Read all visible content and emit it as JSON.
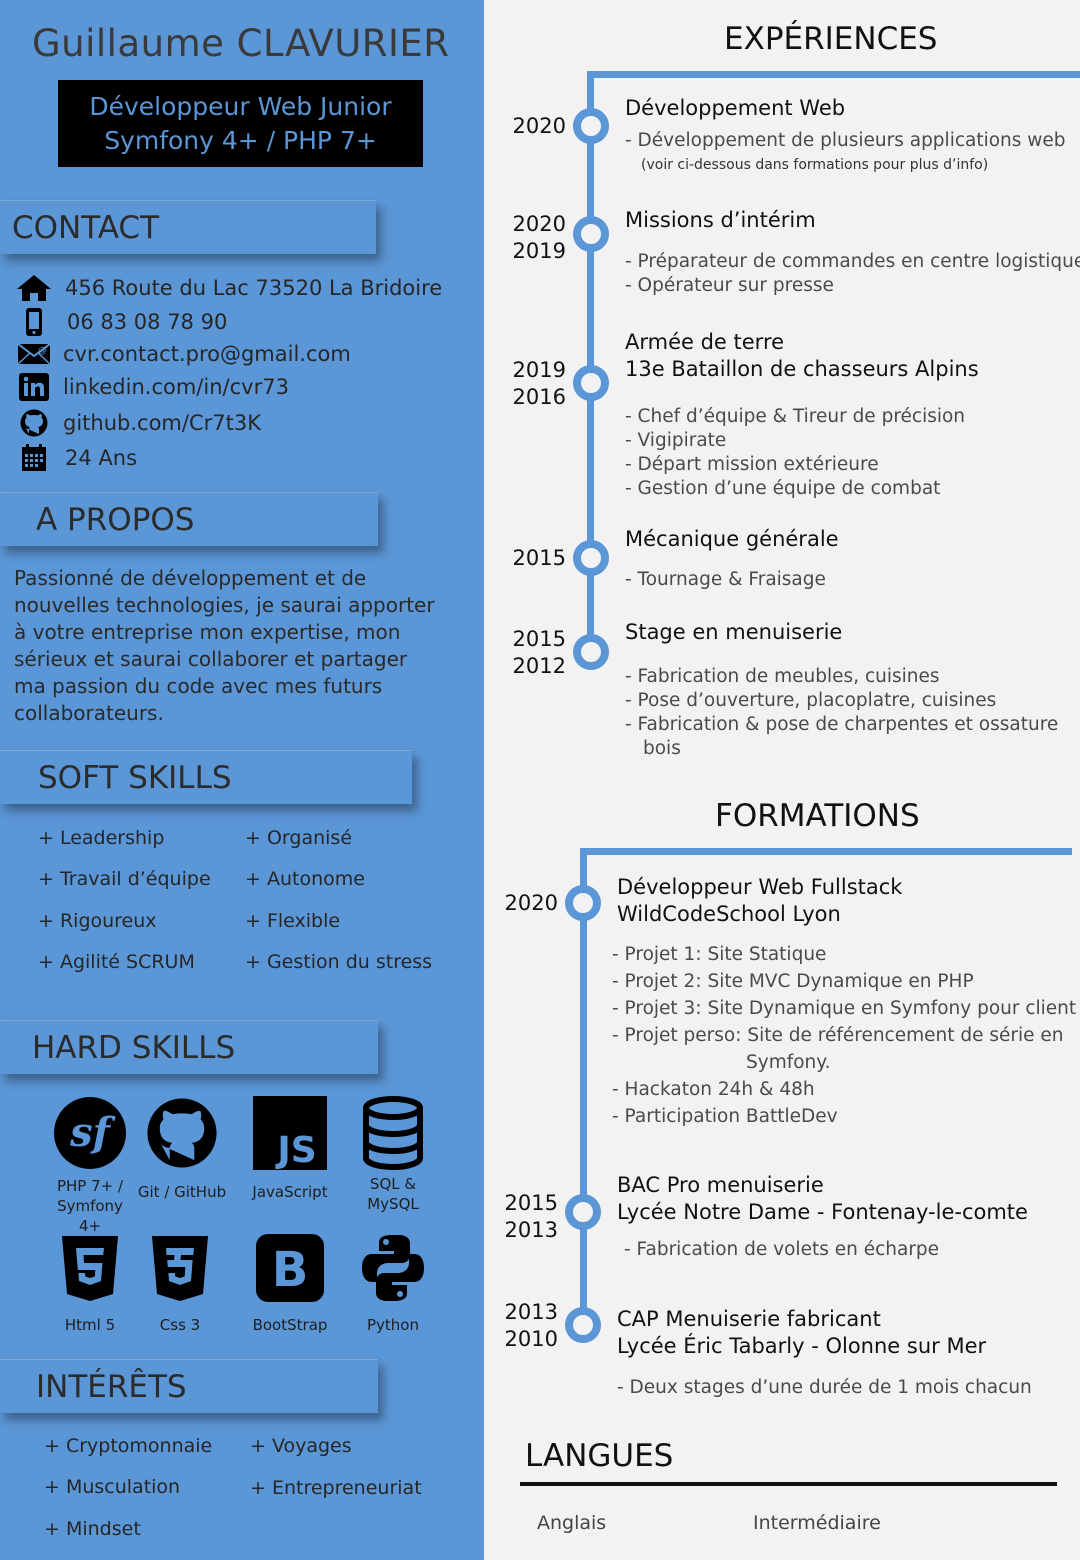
{
  "header": {
    "name": "Guillaume CLAVURIER",
    "title_line1": "Développeur Web Junior",
    "title_line2": "Symfony 4+ / PHP 7+"
  },
  "contact": {
    "heading": "CONTACT",
    "items": [
      {
        "icon": "home-icon",
        "text": "456 Route du Lac 73520 La Bridoire"
      },
      {
        "icon": "phone-icon",
        "text": "06 83 08 78 90"
      },
      {
        "icon": "mail-icon",
        "text": "cvr.contact.pro@gmail.com"
      },
      {
        "icon": "linkedin-icon",
        "text": "linkedin.com/in/cvr73"
      },
      {
        "icon": "github-icon",
        "text": "github.com/Cr7t3K"
      },
      {
        "icon": "calendar-icon",
        "text": "24 Ans"
      }
    ]
  },
  "about": {
    "heading": "A PROPOS",
    "text": "Passionné de développement et de nouvelles technologies, je saurai apporter à votre entreprise mon expertise, mon sérieux et saurai collaborer et partager ma passion du code avec mes futurs collaborateurs."
  },
  "soft_skills": {
    "heading": "SOFT SKILLS",
    "items": [
      "+ Leadership",
      "+ Organisé",
      "+ Travail d’équipe",
      "+ Autonome",
      "+ Rigoureux",
      "+ Flexible",
      "+ Agilité SCRUM",
      "+ Gestion du stress"
    ]
  },
  "hard_skills": {
    "heading": "HARD SKILLS",
    "items": [
      {
        "icon": "symfony-icon",
        "label": "PHP 7+ / Symfony 4+"
      },
      {
        "icon": "github-icon",
        "label": "Git / GitHub"
      },
      {
        "icon": "javascript-icon",
        "label": "JavaScript"
      },
      {
        "icon": "database-icon",
        "label": "SQL & MySQL"
      },
      {
        "icon": "html5-icon",
        "label": "Html 5"
      },
      {
        "icon": "css3-icon",
        "label": "Css 3"
      },
      {
        "icon": "bootstrap-icon",
        "label": "BootStrap"
      },
      {
        "icon": "python-icon",
        "label": "Python"
      }
    ]
  },
  "interests": {
    "heading": "INTÉRÊTS",
    "items": [
      "+ Cryptomonnaie",
      "+ Voyages",
      "+ Musculation",
      "+ Entrepreneuriat",
      "+ Mindset"
    ]
  },
  "experiences": {
    "heading": "EXPÉRIENCES",
    "items": [
      {
        "years": [
          "2020"
        ],
        "title": [
          "Développement Web"
        ],
        "details": [
          "- Développement de plusieurs applications web"
        ],
        "note": "(voir ci-dessous dans formations pour plus d’info)"
      },
      {
        "years": [
          "2020",
          "2019"
        ],
        "title": [
          "Missions d’intérim"
        ],
        "details": [
          "- Préparateur de commandes en centre logistique",
          "- Opérateur sur presse"
        ]
      },
      {
        "years": [
          "2019",
          "2016"
        ],
        "title": [
          "Armée de terre",
          "13e Bataillon de chasseurs Alpins"
        ],
        "details": [
          "- Chef d’équipe & Tireur de précision",
          "- Vigipirate",
          "- Départ mission extérieure",
          "- Gestion d’une équipe de combat"
        ]
      },
      {
        "years": [
          "2015"
        ],
        "title": [
          "Mécanique générale"
        ],
        "details": [
          "- Tournage & Fraisage"
        ]
      },
      {
        "years": [
          "2015",
          "2012"
        ],
        "title": [
          "Stage en menuiserie"
        ],
        "details": [
          "- Fabrication de meubles, cuisines",
          "- Pose d’ouverture, placoplatre, cuisines",
          "- Fabrication & pose de charpentes et ossature",
          "bois"
        ]
      }
    ]
  },
  "formations": {
    "heading": "FORMATIONS",
    "items": [
      {
        "years": [
          "2020"
        ],
        "title": [
          "Développeur Web Fullstack",
          "WildCodeSchool Lyon"
        ],
        "details": [
          "- Projet 1: Site Statique",
          "- Projet 2: Site MVC Dynamique en PHP",
          "- Projet 3: Site Dynamique en Symfony pour client",
          "- Projet perso: Site de référencement de série en",
          "Symfony.",
          "- Hackaton 24h & 48h",
          "- Participation BattleDev"
        ]
      },
      {
        "years": [
          "2015",
          "2013"
        ],
        "title": [
          "BAC Pro menuiserie",
          "Lycée Notre Dame - Fontenay-le-comte"
        ],
        "details": [
          "- Fabrication de volets en écharpe"
        ]
      },
      {
        "years": [
          "2013",
          "2010"
        ],
        "title": [
          "CAP Menuiserie fabricant",
          "Lycée Éric Tabarly - Olonne sur Mer"
        ],
        "details": [
          "- Deux stages d’une durée de 1 mois chacun"
        ]
      }
    ]
  },
  "languages": {
    "heading": "LANGUES",
    "items": [
      {
        "language": "Anglais",
        "level": "Intermédiaire"
      }
    ]
  },
  "colors": {
    "accent": "#5b96d6",
    "left_bg": "#5b96d6",
    "right_bg": "#f2f2f2",
    "title_box": "#000000"
  }
}
